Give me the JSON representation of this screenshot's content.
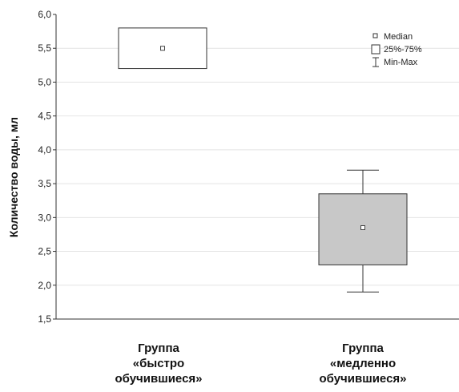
{
  "chart_data": {
    "type": "box",
    "ylabel": "Количество воды, мл",
    "ylim": [
      1.5,
      6.0
    ],
    "yticks": [
      "6,0",
      "5,5",
      "5,0",
      "4,5",
      "4,0",
      "3,5",
      "3,0",
      "2,5",
      "2,0",
      "1,5"
    ],
    "ytick_values": [
      6.0,
      5.5,
      5.0,
      4.5,
      4.0,
      3.5,
      3.0,
      2.5,
      2.0,
      1.5
    ],
    "grid": true,
    "legend_position": "top-right",
    "legend": [
      "Median",
      "25%-75%",
      "Min-Max"
    ],
    "categories": [
      {
        "lines": [
          "Группа",
          "«быстро",
          "обучившиеся»"
        ]
      },
      {
        "lines": [
          "Группа",
          "«медленно",
          "обучившиеся»"
        ]
      }
    ],
    "boxes": [
      {
        "min": 5.2,
        "q1": 5.2,
        "median": 5.5,
        "q3": 5.8,
        "max": 5.8,
        "fill": "#ffffff"
      },
      {
        "min": 1.9,
        "q1": 2.3,
        "median": 2.85,
        "q3": 3.35,
        "max": 3.7,
        "fill": "#c8c8c8"
      }
    ]
  }
}
